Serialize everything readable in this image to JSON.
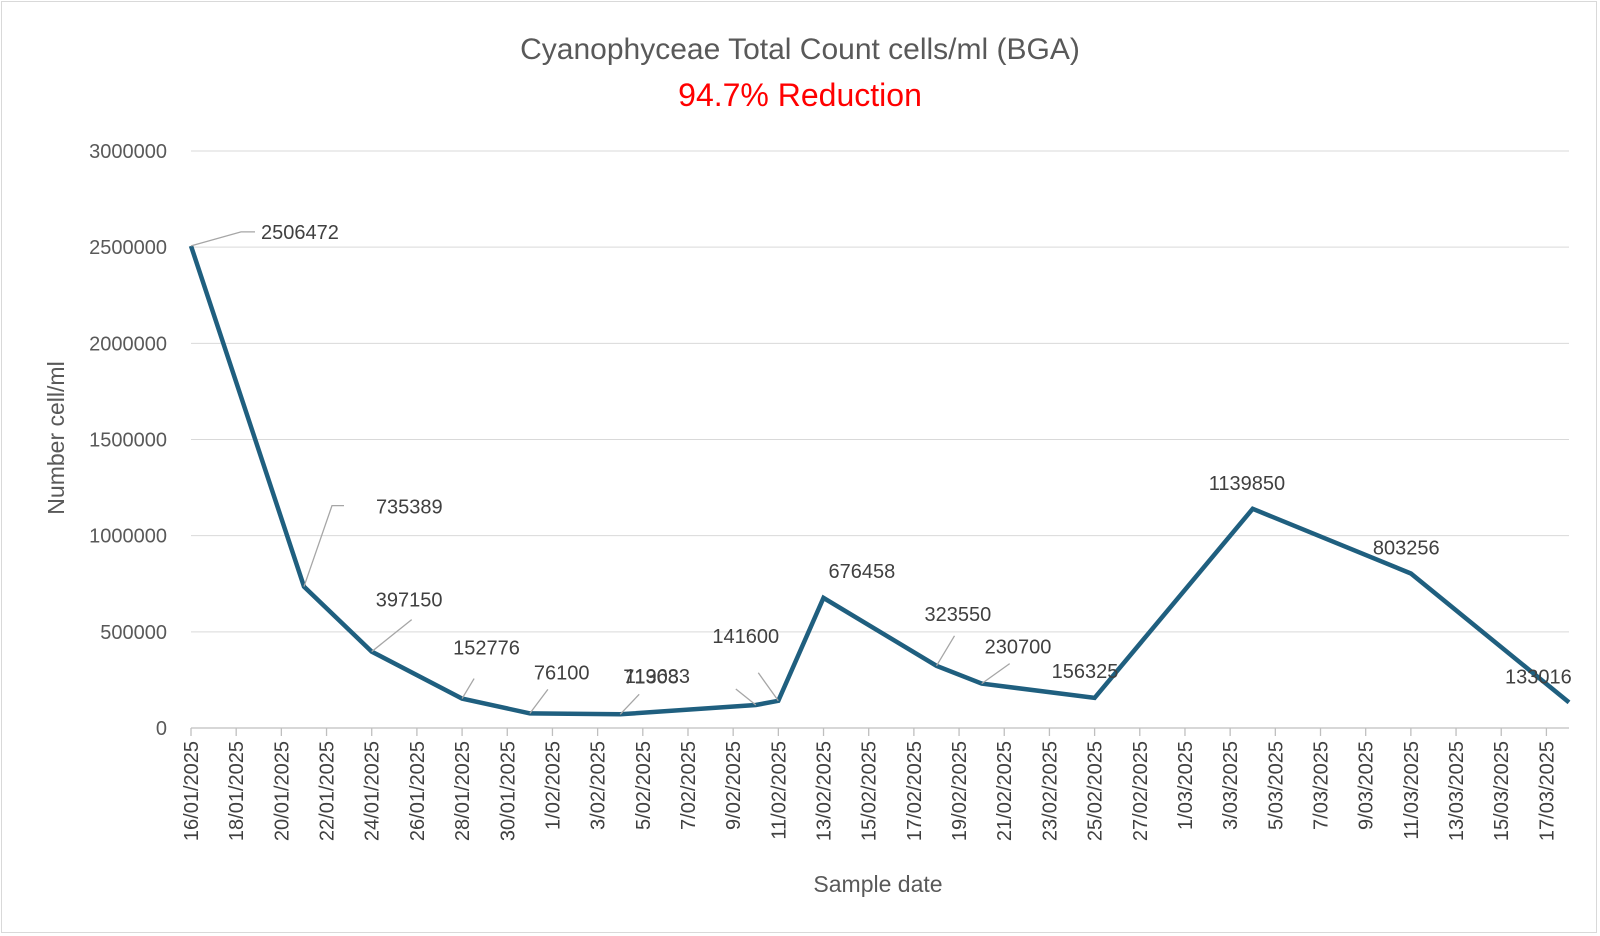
{
  "chart_data": {
    "type": "line",
    "title": "Cyanophyceae  Total Count cells/ml (BGA)",
    "subtitle": "94.7% Reduction",
    "xlabel": "Sample date",
    "ylabel": "Number cell/ml",
    "ylim": [
      0,
      3000000
    ],
    "yticks": [
      "0",
      "500000",
      "1000000",
      "1500000",
      "2000000",
      "2500000",
      "3000000"
    ],
    "x_axis_type": "date",
    "x_tick_labels": [
      "16/01/2025",
      "18/01/2025",
      "20/01/2025",
      "22/01/2025",
      "24/01/2025",
      "26/01/2025",
      "28/01/2025",
      "30/01/2025",
      "1/02/2025",
      "3/02/2025",
      "5/02/2025",
      "7/02/2025",
      "9/02/2025",
      "11/02/2025",
      "13/02/2025",
      "15/02/2025",
      "17/02/2025",
      "19/02/2025",
      "21/02/2025",
      "23/02/2025",
      "25/02/2025",
      "27/02/2025",
      "1/03/2025",
      "3/03/2025",
      "5/03/2025",
      "7/03/2025",
      "9/03/2025",
      "11/03/2025",
      "13/03/2025",
      "15/03/2025",
      "17/03/2025"
    ],
    "gridlines": "horizontal",
    "legend": "none",
    "series": [
      {
        "color": "#1f5f7f",
        "points": [
          {
            "x": "16/01/2025",
            "y": 2506472,
            "label": "2506472"
          },
          {
            "x": "21/01/2025",
            "y": 735389,
            "label": "735389"
          },
          {
            "x": "24/01/2025",
            "y": 397150,
            "label": "397150"
          },
          {
            "x": "28/01/2025",
            "y": 152776,
            "label": "152776"
          },
          {
            "x": "31/01/2025",
            "y": 76100,
            "label": "76100"
          },
          {
            "x": "4/02/2025",
            "y": 71308,
            "label": "71308"
          },
          {
            "x": "10/02/2025",
            "y": 119633,
            "label": "119633"
          },
          {
            "x": "11/02/2025",
            "y": 141600,
            "label": "141600"
          },
          {
            "x": "13/02/2025",
            "y": 676458,
            "label": "676458"
          },
          {
            "x": "18/02/2025",
            "y": 323550,
            "label": "323550"
          },
          {
            "x": "20/02/2025",
            "y": 230700,
            "label": "230700"
          },
          {
            "x": "25/02/2025",
            "y": 156325,
            "label": "156325"
          },
          {
            "x": "4/03/2025",
            "y": 1139850,
            "label": "1139850"
          },
          {
            "x": "11/03/2025",
            "y": 803256,
            "label": "803256"
          },
          {
            "x": "18/03/2025",
            "y": 133016,
            "label": "133016"
          }
        ]
      }
    ]
  }
}
